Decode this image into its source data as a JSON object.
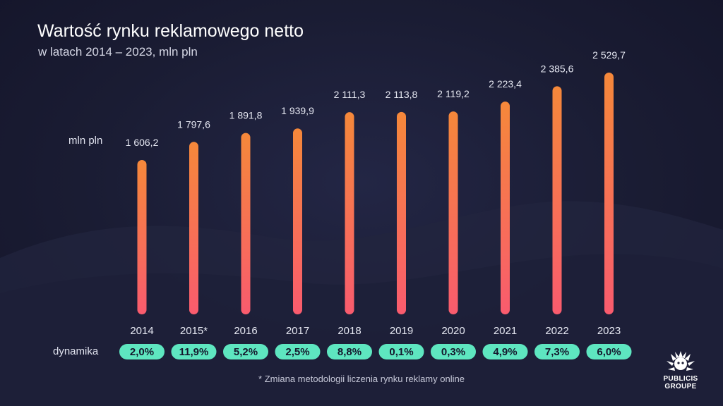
{
  "title": "Wartość rynku reklamowego netto",
  "subtitle": "w latach 2014 – 2023, mln pln",
  "unit_label": "mln pln",
  "dynamics_label": "dynamika",
  "footnote": "* Zmiana metodologii liczenia rynku reklamy online",
  "logo": {
    "line1": "PUBLICIS",
    "line2": "GROUPE"
  },
  "colors": {
    "bar_top": "#f5883a",
    "bar_bottom": "#f95b6e",
    "pill": "#5ee6c0",
    "background": "#1a1c33"
  },
  "chart_data": {
    "type": "bar",
    "title": "Wartość rynku reklamowego netto",
    "subtitle": "w latach 2014 – 2023, mln pln",
    "ylabel": "mln pln",
    "categories": [
      "2014",
      "2015*",
      "2016",
      "2017",
      "2018",
      "2019",
      "2020",
      "2021",
      "2022",
      "2023"
    ],
    "values": [
      1606.2,
      1797.6,
      1891.8,
      1939.9,
      2111.3,
      2113.8,
      2119.2,
      2223.4,
      2385.6,
      2529.7
    ],
    "value_labels": [
      "1 606,2",
      "1 797,6",
      "1 891,8",
      "1 939,9",
      "2 111,3",
      "2 113,8",
      "2 119,2",
      "2 223,4",
      "2 385,6",
      "2 529,7"
    ],
    "dynamics": [
      "2,0%",
      "11,9%",
      "5,2%",
      "2,5%",
      "8,8%",
      "0,1%",
      "0,3%",
      "4,9%",
      "7,3%",
      "6,0%"
    ],
    "grid": false,
    "legend": "none"
  }
}
